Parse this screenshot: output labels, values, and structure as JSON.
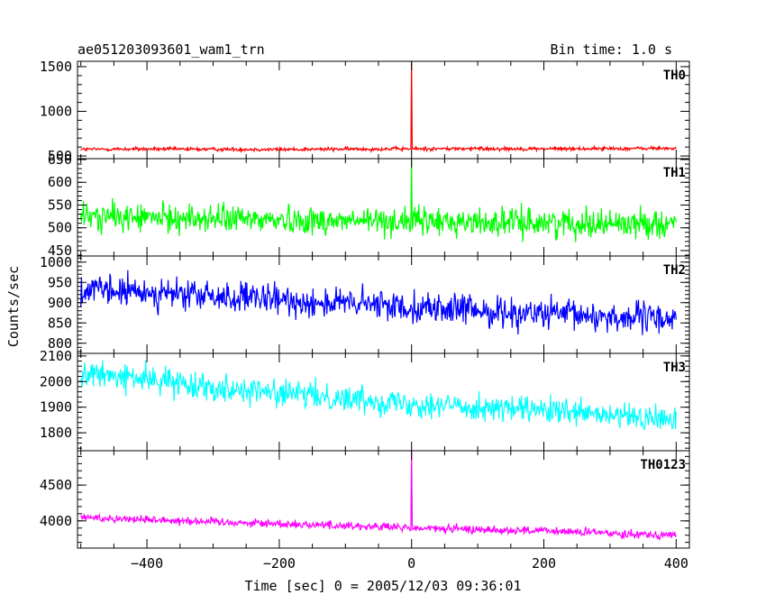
{
  "header": {
    "title": "ae051203093601_wam1_trn",
    "bin_time": "Bin time: 1.0 s"
  },
  "chart_data": {
    "type": "line",
    "title": "ae051203093601_wam1_trn",
    "xlabel": "Time [sec] 0 = 2005/12/03 09:36:01",
    "ylabel": "Counts/sec",
    "xlim": [
      -505,
      420
    ],
    "x_ticks": [
      -400,
      -200,
      0,
      200,
      400
    ],
    "x_tick_labels": [
      "−400",
      "−200",
      "0",
      "200",
      "400"
    ],
    "grid": false,
    "sampling_sec": 1.0,
    "panels": [
      {
        "name": "TH0",
        "color": "#ff0000",
        "ylim": [
          470,
          1560
        ],
        "yticks": [
          500,
          1000,
          1500
        ],
        "ytick_labels": [
          "500",
          "1000",
          "1500"
        ],
        "x": [
          -500,
          -400,
          -300,
          -200,
          -100,
          0,
          100,
          200,
          300,
          400
        ],
        "y": [
          575,
          578,
          575,
          573,
          577,
          580,
          582,
          580,
          583,
          585
        ],
        "noise_amplitude": 30,
        "spike": {
          "x": 0,
          "y": 1560
        }
      },
      {
        "name": "TH1",
        "color": "#00ff00",
        "ylim": [
          438,
          652
        ],
        "yticks": [
          450,
          500,
          550,
          600,
          650
        ],
        "ytick_labels": [
          "450",
          "500",
          "550",
          "600",
          "650"
        ],
        "x": [
          -500,
          -400,
          -300,
          -200,
          -100,
          0,
          100,
          200,
          300,
          400
        ],
        "y": [
          525,
          522,
          520,
          518,
          515,
          515,
          512,
          512,
          510,
          510
        ],
        "noise_amplitude": 45,
        "spike": {
          "x": 0,
          "y": 652
        }
      },
      {
        "name": "TH2",
        "color": "#0000ff",
        "ylim": [
          775,
          1015
        ],
        "yticks": [
          800,
          850,
          900,
          950,
          1000
        ],
        "ytick_labels": [
          "800",
          "850",
          "900",
          "950",
          "1000"
        ],
        "x": [
          -500,
          -400,
          -300,
          -200,
          -100,
          0,
          100,
          200,
          300,
          400
        ],
        "y": [
          930,
          925,
          915,
          905,
          898,
          890,
          880,
          872,
          865,
          860
        ],
        "noise_amplitude": 55,
        "spike": null
      },
      {
        "name": "TH3",
        "color": "#00ffff",
        "ylim": [
          1730,
          2110
        ],
        "yticks": [
          1800,
          1900,
          2000,
          2100
        ],
        "ytick_labels": [
          "1800",
          "1900",
          "2000",
          "2100"
        ],
        "x": [
          -500,
          -400,
          -300,
          -200,
          -100,
          0,
          100,
          200,
          300,
          400
        ],
        "y": [
          2030,
          2010,
          1980,
          1955,
          1935,
          1915,
          1900,
          1885,
          1865,
          1850
        ],
        "noise_amplitude": 75,
        "spike": null
      },
      {
        "name": "TH0123",
        "color": "#ff00ff",
        "ylim": [
          3620,
          4980
        ],
        "yticks": [
          4000,
          4500
        ],
        "ytick_labels": [
          "4000",
          "4500"
        ],
        "x": [
          -500,
          -400,
          -300,
          -200,
          -100,
          0,
          100,
          200,
          300,
          400
        ],
        "y": [
          4050,
          4020,
          3990,
          3960,
          3935,
          3900,
          3880,
          3860,
          3830,
          3800
        ],
        "noise_amplitude": 85,
        "spike": {
          "x": 0,
          "y": 4980
        }
      }
    ]
  }
}
